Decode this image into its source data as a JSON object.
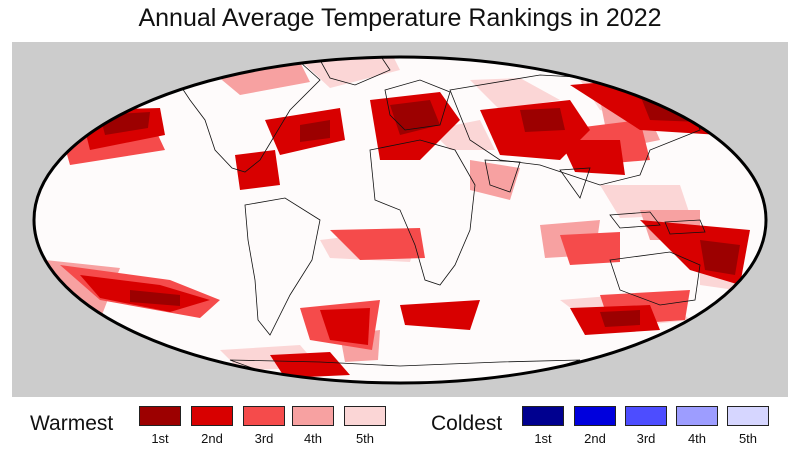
{
  "title": "Annual Average Temperature Rankings in 2022",
  "colors": {
    "background_panel": "#cccccc",
    "ocean": "#fefbfb",
    "warm": [
      "#9c0000",
      "#d80000",
      "#f54b4b",
      "#f7a1a1",
      "#fbd6d6"
    ],
    "cold": [
      "#00008f",
      "#0000dd",
      "#4d4dff",
      "#9d9dff",
      "#d6d6ff"
    ]
  },
  "legend": {
    "warmest_label": "Warmest",
    "coldest_label": "Coldest",
    "ranks": [
      "1st",
      "2nd",
      "3rd",
      "4th",
      "5th"
    ]
  }
}
